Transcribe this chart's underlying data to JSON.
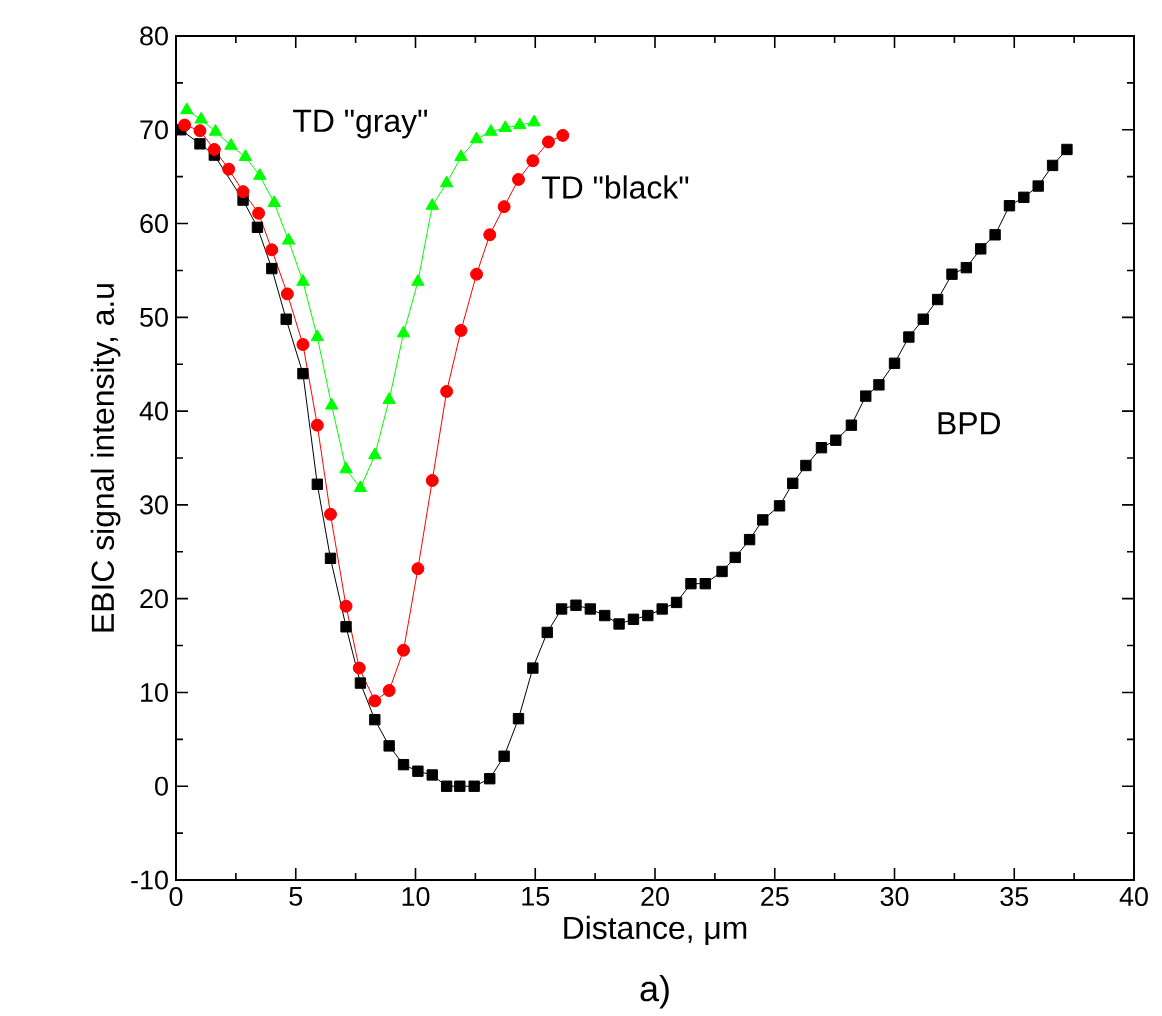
{
  "chart_data": {
    "type": "line",
    "xlabel": "Distance, μm",
    "ylabel": "EBIC signal intensity, a.u",
    "annotations": [
      "a)"
    ],
    "xlim": [
      0,
      40
    ],
    "xticks": [
      0,
      5,
      10,
      15,
      20,
      25,
      30,
      35,
      40
    ],
    "ylim": [
      -10,
      80
    ],
    "yticks": [
      -10,
      0,
      10,
      20,
      30,
      40,
      50,
      60,
      70,
      80
    ],
    "grid": false,
    "line_style": "solid",
    "series": [
      {
        "name": "BPD",
        "color": "#000000",
        "marker": "square",
        "x": [
          0.2,
          1.0,
          1.6,
          2.8,
          3.4,
          4.0,
          4.6,
          5.3,
          5.9,
          6.45,
          7.1,
          7.7,
          8.3,
          8.9,
          9.5,
          10.1,
          10.7,
          11.3,
          11.85,
          12.45,
          13.1,
          13.7,
          14.3,
          14.9,
          15.5,
          16.1,
          16.7,
          17.3,
          17.9,
          18.5,
          19.1,
          19.7,
          20.3,
          20.9,
          21.5,
          22.1,
          22.8,
          23.35,
          23.95,
          24.5,
          25.2,
          25.75,
          26.3,
          26.95,
          27.55,
          28.2,
          28.8,
          29.35,
          30.0,
          30.6,
          31.2,
          31.8,
          32.4,
          33.0,
          33.6,
          34.2,
          34.8,
          35.4,
          36.0,
          36.6,
          37.2
        ],
        "values": [
          70,
          68.5,
          67.3,
          62.5,
          59.6,
          55.2,
          49.8,
          44,
          32.2,
          24.3,
          17,
          11,
          7.1,
          4.3,
          2.3,
          1.6,
          1.2,
          0,
          0,
          0,
          0.8,
          3.2,
          7.2,
          12.6,
          16.4,
          18.9,
          19.3,
          18.9,
          18.2,
          17.3,
          17.8,
          18.2,
          18.9,
          19.6,
          21.6,
          21.6,
          22.9,
          24.4,
          26.3,
          28.4,
          29.9,
          32.3,
          34.2,
          36.1,
          36.9,
          38.5,
          41.6,
          42.8,
          45.1,
          47.9,
          49.8,
          51.9,
          54.6,
          55.3,
          57.3,
          58.8,
          61.9,
          62.8,
          64,
          66.2,
          67.9
        ]
      },
      {
        "name": "TD \"black\"",
        "color": "#ff0000",
        "marker": "circle",
        "x": [
          0.36,
          1.0,
          1.6,
          2.2,
          2.8,
          3.45,
          4.0,
          4.65,
          5.3,
          5.9,
          6.45,
          7.1,
          7.65,
          8.3,
          8.9,
          9.5,
          10.1,
          10.7,
          11.3,
          11.9,
          12.55,
          13.1,
          13.7,
          14.3,
          14.9,
          15.55,
          16.15
        ],
        "values": [
          70.5,
          69.9,
          67.9,
          65.8,
          63.4,
          61.1,
          57.2,
          52.5,
          47.1,
          38.5,
          29,
          19.2,
          12.6,
          9.1,
          10.2,
          14.5,
          23.2,
          32.6,
          42.1,
          48.6,
          54.6,
          58.8,
          61.8,
          64.7,
          66.7,
          68.7,
          69.4
        ]
      },
      {
        "name": "TD \"gray\"",
        "color": "#00ff00",
        "marker": "triangle",
        "x": [
          0.45,
          1.05,
          1.65,
          2.3,
          2.9,
          3.5,
          4.1,
          4.7,
          5.3,
          5.9,
          6.5,
          7.1,
          7.7,
          8.3,
          8.9,
          9.5,
          10.1,
          10.7,
          11.3,
          11.9,
          12.55,
          13.15,
          13.75,
          14.35,
          14.95
        ],
        "values": [
          72.1,
          71.1,
          69.8,
          68.3,
          67.1,
          65.1,
          62.2,
          58.2,
          53.8,
          47.9,
          40.6,
          33.8,
          31.8,
          35.3,
          41.2,
          48.3,
          53.8,
          61.9,
          64.3,
          67.1,
          69,
          69.8,
          70.2,
          70.5,
          70.8
        ]
      }
    ]
  }
}
